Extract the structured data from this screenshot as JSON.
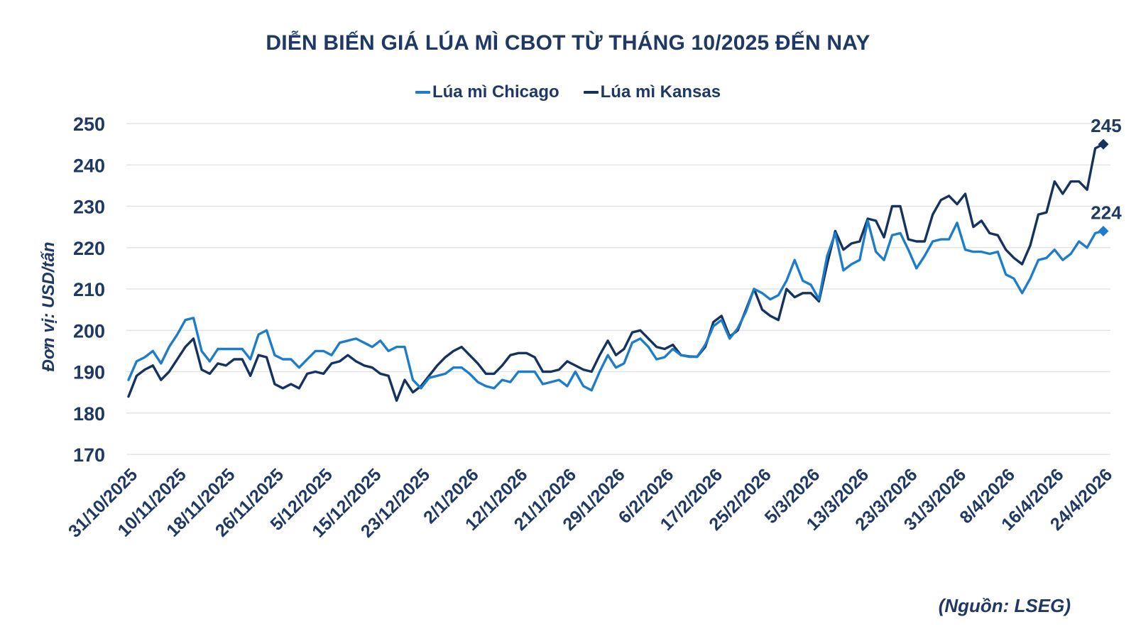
{
  "title": "DIỄN BIẾN GIÁ LÚA MÌ CBOT TỪ THÁNG 10/2025 ĐẾN NAY",
  "source": "(Nguồn: LSEG)",
  "colors": {
    "ink": "#1f3864",
    "grid": "#e3e3e3",
    "background": "#ffffff",
    "chicago": "#1e7dcb",
    "kansas": "#16325e"
  },
  "chart_data": {
    "type": "line",
    "title": "DIỄN BIẾN GIÁ LÚA MÌ CBOT TỪ THÁNG 10/2025 ĐẾN NAY",
    "xlabel": "",
    "ylabel": "Đơn vị: USD/tấn",
    "ylim": [
      170,
      250
    ],
    "yticks": [
      250,
      240,
      230,
      220,
      210,
      200,
      190,
      180,
      170
    ],
    "grid": "horizontal",
    "legend_position": "top",
    "points_per_label": 6,
    "categories": [
      "31/10/2025",
      "10/11/2025",
      "18/11/2025",
      "26/11/2025",
      "5/12/2025",
      "15/12/2025",
      "23/12/2025",
      "2/1/2026",
      "12/1/2026",
      "21/1/2026",
      "29/1/2026",
      "6/2/2026",
      "17/2/2026",
      "25/2/2026",
      "5/3/2026",
      "13/3/2026",
      "23/3/2026",
      "31/3/2026",
      "8/4/2026",
      "16/4/2026",
      "24/4/2026"
    ],
    "series": [
      {
        "key": "chicago",
        "name": "Lúa mì Chicago",
        "color": "#1e7dcb",
        "end_label": "224",
        "values": [
          188,
          192.5,
          193.5,
          195,
          192,
          196,
          199,
          202.5,
          203,
          195,
          192.5,
          195.5,
          195.5,
          195.5,
          195.5,
          193,
          199,
          200,
          194,
          193,
          193,
          191,
          193,
          195,
          195,
          194,
          197,
          197.5,
          198,
          197,
          196,
          197.5,
          195,
          196,
          196,
          188,
          186,
          188.5,
          189,
          189.5,
          191,
          191,
          189.5,
          187.5,
          186.5,
          186,
          188,
          187.5,
          190,
          190,
          190,
          187,
          187.5,
          188,
          186.5,
          190,
          186.5,
          185.5,
          190,
          194,
          191,
          192,
          197,
          198,
          196,
          193,
          193.5,
          195.5,
          194,
          193.6,
          193.6,
          196.5,
          201,
          202.5,
          198,
          200.5,
          204.5,
          210,
          209,
          207.5,
          208.5,
          212,
          217,
          212,
          211,
          207.5,
          218,
          223.5,
          214.5,
          216,
          217,
          226.5,
          219,
          217,
          223,
          223.5,
          219.5,
          215,
          218,
          221.5,
          222,
          222,
          226,
          219.5,
          219,
          219,
          218.5,
          219,
          213.5,
          212.5,
          209,
          212.5,
          217,
          217.5,
          219.5,
          217,
          218.5,
          221.5,
          220,
          223.5,
          224
        ]
      },
      {
        "key": "kansas",
        "name": "Lúa mì Kansas",
        "color": "#16325e",
        "end_label": "245",
        "values": [
          184,
          189,
          190.5,
          191.5,
          188,
          190,
          193,
          196,
          198,
          190.5,
          189.5,
          192,
          191.5,
          193,
          193,
          189,
          194,
          193.5,
          187,
          186,
          187,
          186,
          189.5,
          190,
          189.5,
          192,
          192.5,
          194,
          192.5,
          191.5,
          191,
          189.5,
          189,
          183,
          188,
          185,
          186.5,
          189,
          191.5,
          193.5,
          195,
          196,
          194,
          192,
          189.5,
          189.5,
          191.5,
          194,
          194.5,
          194.5,
          193.5,
          190,
          190,
          190.5,
          192.5,
          191.5,
          190.5,
          190,
          194,
          197.5,
          194,
          195.5,
          199.5,
          200,
          198,
          196,
          195.5,
          196.5,
          194,
          193.7,
          193.6,
          196,
          202,
          203.5,
          198.5,
          200,
          205,
          210,
          205,
          203.5,
          202.5,
          210,
          208,
          209,
          209,
          207,
          216,
          224,
          219.5,
          221,
          221.5,
          227,
          226.5,
          222.5,
          230,
          230,
          222,
          221.5,
          221.5,
          228,
          231.5,
          232.5,
          230.5,
          233,
          225,
          226.5,
          223.5,
          223,
          219.5,
          217.5,
          216,
          220.5,
          228,
          228.5,
          236,
          233,
          236,
          236,
          234,
          244,
          245
        ]
      }
    ]
  }
}
